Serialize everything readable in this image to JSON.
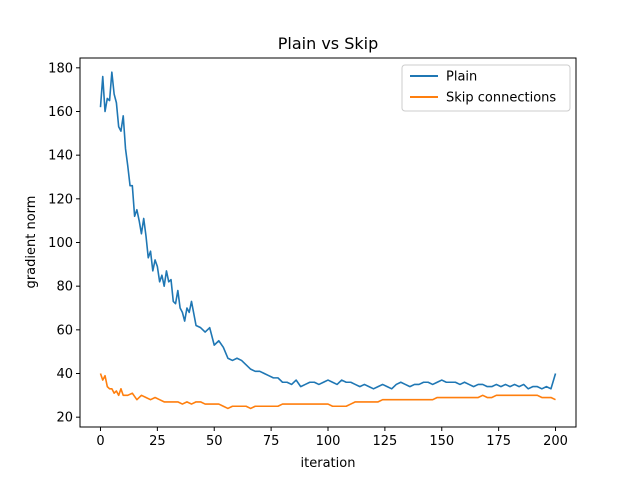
{
  "chart_data": {
    "type": "line",
    "title": "Plain vs Skip",
    "xlabel": "iteration",
    "ylabel": "gradient norm",
    "xlim": [
      -9,
      209
    ],
    "ylim": [
      15.5,
      184.5
    ],
    "xticks": [
      0,
      25,
      50,
      75,
      100,
      125,
      150,
      175,
      200
    ],
    "yticks": [
      20,
      40,
      60,
      80,
      100,
      120,
      140,
      160,
      180
    ],
    "grid": false,
    "legend_position": "top-right",
    "series": [
      {
        "name": "Plain",
        "color": "#1f77b4",
        "x": [
          0,
          1,
          2,
          3,
          4,
          5,
          6,
          7,
          8,
          9,
          10,
          11,
          12,
          13,
          14,
          15,
          16,
          17,
          18,
          19,
          20,
          21,
          22,
          23,
          24,
          25,
          26,
          27,
          28,
          29,
          30,
          31,
          32,
          33,
          34,
          35,
          36,
          37,
          38,
          39,
          40,
          42,
          44,
          46,
          48,
          50,
          52,
          54,
          56,
          58,
          60,
          62,
          64,
          66,
          68,
          70,
          72,
          74,
          76,
          78,
          80,
          82,
          84,
          86,
          88,
          90,
          92,
          94,
          96,
          98,
          100,
          102,
          104,
          106,
          108,
          110,
          112,
          114,
          116,
          118,
          120,
          122,
          124,
          126,
          128,
          130,
          132,
          134,
          136,
          138,
          140,
          142,
          144,
          146,
          148,
          150,
          152,
          154,
          156,
          158,
          160,
          162,
          164,
          166,
          168,
          170,
          172,
          174,
          176,
          178,
          180,
          182,
          184,
          186,
          188,
          190,
          192,
          194,
          196,
          198,
          200
        ],
        "values": [
          162,
          176,
          160,
          166,
          165,
          178,
          168,
          164,
          153,
          151,
          158,
          143,
          135,
          126,
          126,
          112,
          115,
          110,
          104,
          111,
          103,
          93,
          96,
          87,
          92,
          89,
          82,
          85,
          80,
          87,
          82,
          83,
          73,
          72,
          78,
          70,
          68,
          64,
          70,
          68,
          73,
          62,
          61,
          59,
          61,
          53,
          55,
          52,
          47,
          46,
          47,
          46,
          44,
          42,
          41,
          41,
          40,
          39,
          38,
          38,
          36,
          36,
          35,
          37,
          34,
          35,
          36,
          36,
          35,
          36,
          37,
          36,
          35,
          37,
          36,
          36,
          35,
          34,
          35,
          34,
          33,
          34,
          35,
          34,
          33,
          35,
          36,
          35,
          34,
          35,
          35,
          36,
          36,
          35,
          36,
          37,
          36,
          36,
          36,
          35,
          36,
          35,
          34,
          35,
          35,
          34,
          34,
          35,
          34,
          35,
          34,
          35,
          34,
          35,
          33,
          34,
          34,
          33,
          34,
          33,
          40
        ]
      },
      {
        "name": "Skip connections",
        "color": "#ff7f0e",
        "x": [
          0,
          1,
          2,
          3,
          4,
          5,
          6,
          7,
          8,
          9,
          10,
          12,
          14,
          16,
          18,
          20,
          22,
          24,
          26,
          28,
          30,
          32,
          34,
          36,
          38,
          40,
          42,
          44,
          46,
          48,
          50,
          52,
          54,
          56,
          58,
          60,
          62,
          64,
          66,
          68,
          70,
          72,
          74,
          76,
          78,
          80,
          82,
          84,
          86,
          88,
          90,
          92,
          94,
          96,
          98,
          100,
          102,
          104,
          106,
          108,
          110,
          112,
          114,
          116,
          118,
          120,
          122,
          124,
          126,
          128,
          130,
          132,
          134,
          136,
          138,
          140,
          142,
          144,
          146,
          148,
          150,
          152,
          154,
          156,
          158,
          160,
          162,
          164,
          166,
          168,
          170,
          172,
          174,
          176,
          178,
          180,
          182,
          184,
          186,
          188,
          190,
          192,
          194,
          196,
          198,
          200
        ],
        "values": [
          40,
          37,
          39,
          34,
          33,
          33,
          31,
          32,
          30,
          33,
          30,
          30,
          31,
          28,
          30,
          29,
          28,
          29,
          28,
          27,
          27,
          27,
          27,
          26,
          27,
          26,
          27,
          27,
          26,
          26,
          26,
          26,
          25,
          24,
          25,
          25,
          25,
          25,
          24,
          25,
          25,
          25,
          25,
          25,
          25,
          26,
          26,
          26,
          26,
          26,
          26,
          26,
          26,
          26,
          26,
          26,
          25,
          25,
          25,
          25,
          26,
          27,
          27,
          27,
          27,
          27,
          27,
          28,
          28,
          28,
          28,
          28,
          28,
          28,
          28,
          28,
          28,
          28,
          28,
          29,
          29,
          29,
          29,
          29,
          29,
          29,
          29,
          29,
          29,
          30,
          29,
          29,
          30,
          30,
          30,
          30,
          30,
          30,
          30,
          30,
          30,
          30,
          29,
          29,
          29,
          28
        ]
      }
    ]
  }
}
